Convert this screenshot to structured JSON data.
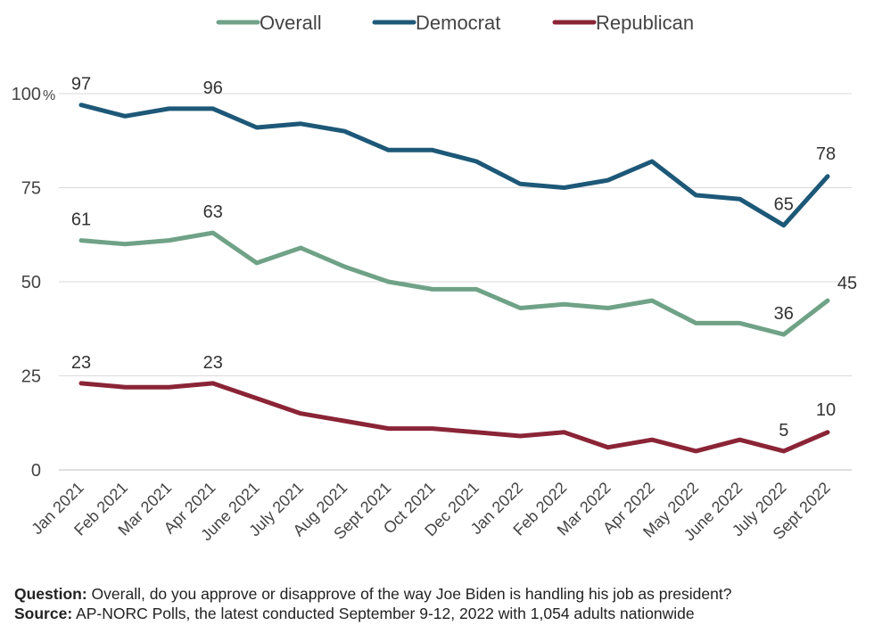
{
  "chart_data": {
    "type": "line",
    "categories": [
      "Jan 2021",
      "Feb 2021",
      "Mar 2021",
      "Apr 2021",
      "June 2021",
      "July 2021",
      "Aug 2021",
      "Sept 2021",
      "Oct 2021",
      "Dec 2021",
      "Jan 2022",
      "Feb 2022",
      "Mar 2022",
      "Apr 2022",
      "May 2022",
      "June 2022",
      "July 2022",
      "Sept 2022"
    ],
    "series": [
      {
        "name": "Overall",
        "color": "#6fa287",
        "values": [
          61,
          60,
          61,
          63,
          55,
          59,
          54,
          50,
          48,
          48,
          43,
          44,
          43,
          45,
          39,
          39,
          36,
          45
        ],
        "labels": [
          {
            "i": 0,
            "text": "61"
          },
          {
            "i": 3,
            "text": "63"
          },
          {
            "i": 16,
            "text": "36"
          },
          {
            "i": 17,
            "text": "45"
          }
        ]
      },
      {
        "name": "Democrat",
        "color": "#1d5878",
        "values": [
          97,
          94,
          96,
          96,
          91,
          92,
          90,
          85,
          85,
          82,
          76,
          75,
          77,
          82,
          73,
          72,
          65,
          78
        ],
        "labels": [
          {
            "i": 0,
            "text": "97"
          },
          {
            "i": 3,
            "text": "96"
          },
          {
            "i": 16,
            "text": "65"
          },
          {
            "i": 17,
            "text": "78"
          }
        ]
      },
      {
        "name": "Republican",
        "color": "#8a2436",
        "values": [
          23,
          22,
          22,
          23,
          19,
          15,
          13,
          11,
          11,
          10,
          9,
          10,
          6,
          8,
          5,
          8,
          5,
          10
        ],
        "labels": [
          {
            "i": 0,
            "text": "23"
          },
          {
            "i": 3,
            "text": "23"
          },
          {
            "i": 16,
            "text": "5"
          },
          {
            "i": 17,
            "text": "10"
          }
        ]
      }
    ],
    "y_ticks": [
      "0",
      "25",
      "50",
      "75",
      "100"
    ],
    "y_tick_values": [
      0,
      25,
      50,
      75,
      100
    ],
    "y_unit": "%",
    "ylim": [
      0,
      100
    ],
    "grid": true,
    "legend": "top"
  },
  "notes": {
    "question_label": "Question:",
    "question_text": " Overall, do you approve or disapprove of the way Joe Biden is handling his job as president?",
    "source_label": "Source:",
    "source_text": " AP-NORC Polls, the latest conducted September 9-12, 2022 with 1,054 adults nationwide"
  }
}
